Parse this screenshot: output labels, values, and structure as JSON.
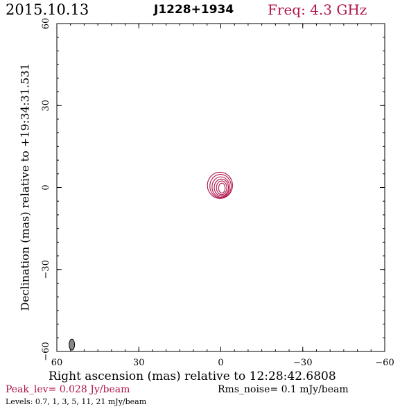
{
  "header": {
    "date": "2015.10.13",
    "source": "J1228+1934",
    "freq": "Freq: 4.3 GHz"
  },
  "footer": {
    "peak": "Peak_lev=  0.028 Jy/beam",
    "rms": "Rms_noise=  0.1 mJy/beam",
    "levels": "Levels: 0.7,   1,   3,   5,  11,  21 mJy/beam"
  },
  "colors": {
    "accent": "#b0144c",
    "contour": "#b0144c",
    "beam_fill": "#888888",
    "axis": "#000000"
  },
  "chart_data": {
    "type": "contour",
    "title": "J1228+1934",
    "xlabel": "Right ascension (mas) relative to 12:28:42.6808",
    "ylabel": "Declination (mas) relative to +19:34:31.531",
    "xlim": [
      60,
      -60
    ],
    "ylim": [
      -60,
      60
    ],
    "x_ticks": [
      {
        "value": 60,
        "label": "60"
      },
      {
        "value": 30,
        "label": "30"
      },
      {
        "value": 0,
        "label": "0"
      },
      {
        "value": -30,
        "label": "−30"
      },
      {
        "value": -60,
        "label": "−60"
      }
    ],
    "y_ticks": [
      {
        "value": -60,
        "label": "−60"
      },
      {
        "value": -30,
        "label": "−30"
      },
      {
        "value": 0,
        "label": "0"
      },
      {
        "value": 30,
        "label": "30"
      },
      {
        "value": 60,
        "label": "60"
      }
    ],
    "minor_tick_step": 5,
    "contour_levels_mJy": [
      0.7,
      1,
      3,
      5,
      11,
      21
    ],
    "peak_Jy_per_beam": 0.028,
    "rms_mJy_per_beam": 0.1,
    "contours": [
      {
        "level": 0.7,
        "cx": 0.3,
        "cy": 0.8,
        "rx": 4.6,
        "ry": 4.8
      },
      {
        "level": 1,
        "cx": 0.1,
        "cy": 0.5,
        "rx": 3.9,
        "ry": 4.3
      },
      {
        "level": 3,
        "cx": 0.0,
        "cy": 0.2,
        "rx": 3.2,
        "ry": 3.7
      },
      {
        "level": 5,
        "cx": -0.2,
        "cy": 0.0,
        "rx": 2.6,
        "ry": 3.1
      },
      {
        "level": 11,
        "cx": -0.3,
        "cy": -0.1,
        "rx": 1.9,
        "ry": 2.5
      },
      {
        "level": 21,
        "cx": -0.4,
        "cy": -0.2,
        "rx": 1.2,
        "ry": 1.8
      }
    ],
    "beam": {
      "x": 54.5,
      "y": -57.5,
      "major_mas": 4.0,
      "minor_mas": 2.0,
      "pa_deg": 0
    }
  }
}
